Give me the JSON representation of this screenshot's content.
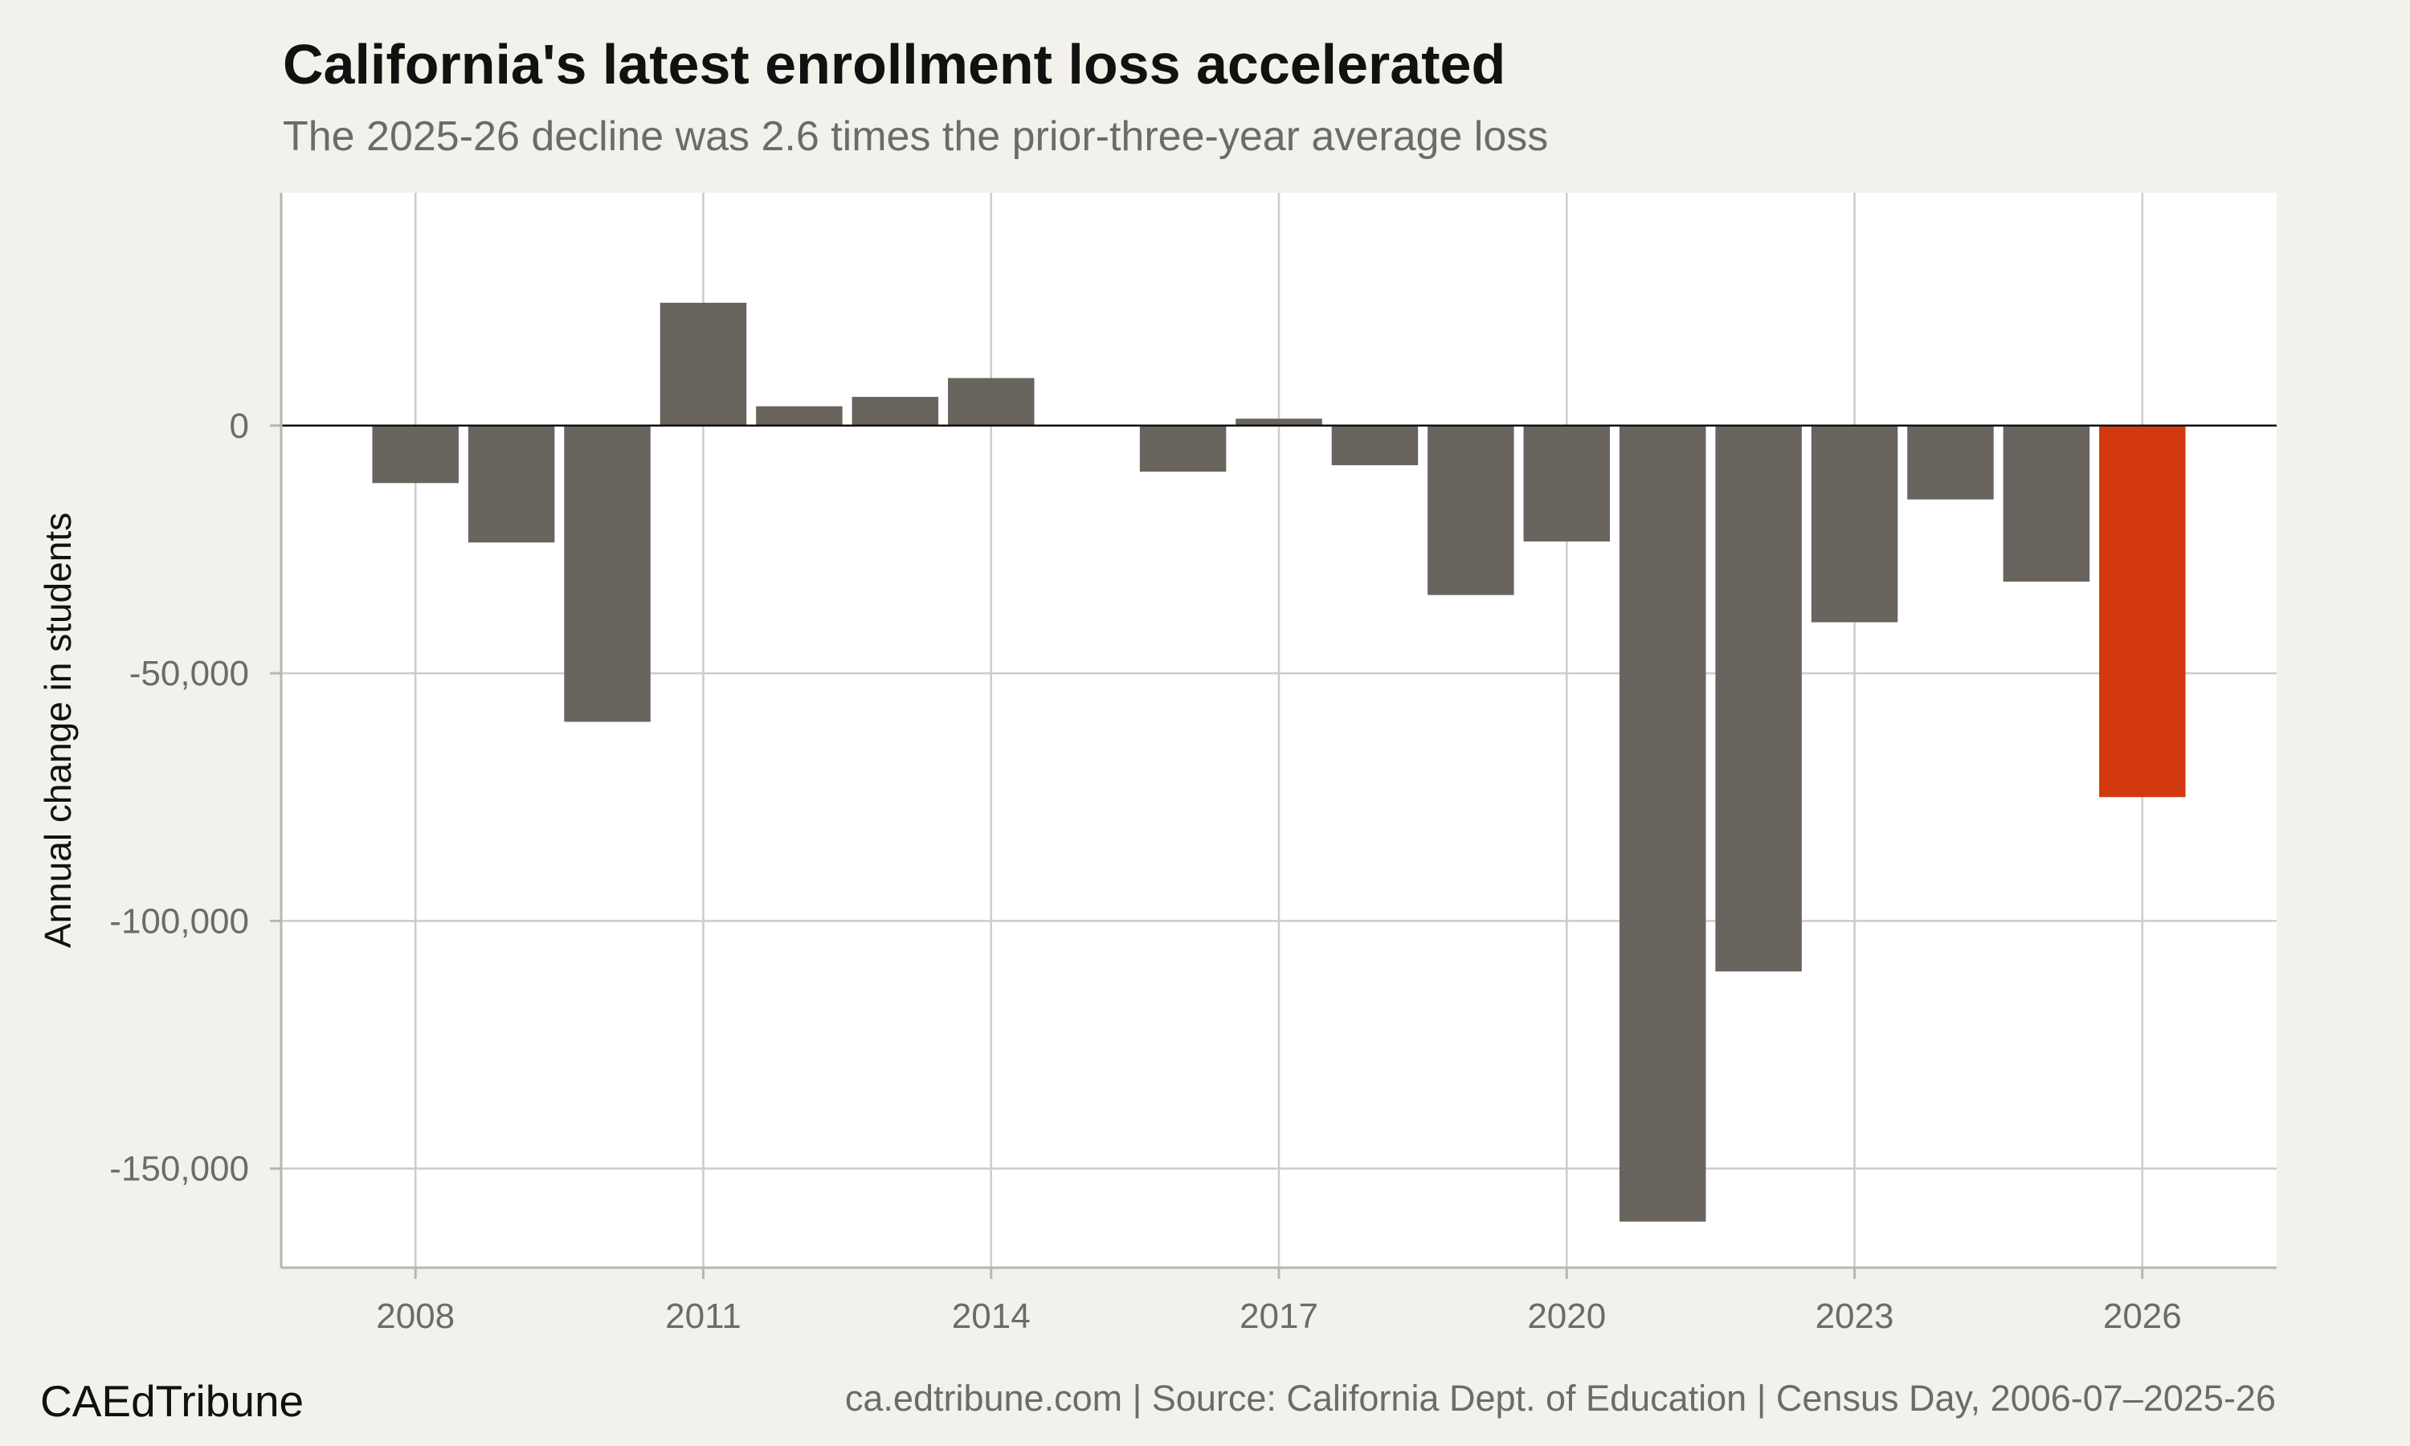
{
  "chart_data": {
    "type": "bar",
    "title": "California's latest enrollment loss accelerated",
    "subtitle": "The 2025-26 decline was 2.6 times the prior-three-year average loss",
    "ylabel": "Annual change in students",
    "xlabel": "",
    "x": [
      2008,
      2009,
      2010,
      2011,
      2012,
      2013,
      2014,
      2016,
      2017,
      2018,
      2019,
      2020,
      2021,
      2022,
      2023,
      2024,
      2025,
      2026
    ],
    "values": [
      -11600,
      -23600,
      -59800,
      24800,
      3900,
      5800,
      9600,
      -9300,
      1400,
      -8000,
      -34200,
      -23400,
      -160700,
      -110200,
      -39700,
      -14900,
      -31500,
      -75000
    ],
    "highlight": [
      false,
      false,
      false,
      false,
      false,
      false,
      false,
      false,
      false,
      false,
      false,
      false,
      false,
      false,
      false,
      false,
      false,
      true
    ],
    "xlim": [
      2006.6,
      2027.4
    ],
    "ylim": [
      -170000,
      47000
    ],
    "xticks": [
      2008,
      2011,
      2014,
      2017,
      2020,
      2023,
      2026
    ],
    "yticks": [
      0,
      -50000,
      -100000,
      -150000
    ],
    "ytick_labels": [
      "0",
      "-50,000",
      "-100,000",
      "-150,000"
    ],
    "grid": true,
    "colors": {
      "bar": "#69645d",
      "highlight": "#d3390e",
      "panel": "#ffffff",
      "background": "#f3f1ec",
      "grid": "#cfccc6",
      "zero_line": "#111111"
    }
  },
  "footer": {
    "brand": "CAEdTribune",
    "source": "ca.edtribune.com | Source: California Dept. of Education | Census Day, 2006-07–2025-26"
  }
}
